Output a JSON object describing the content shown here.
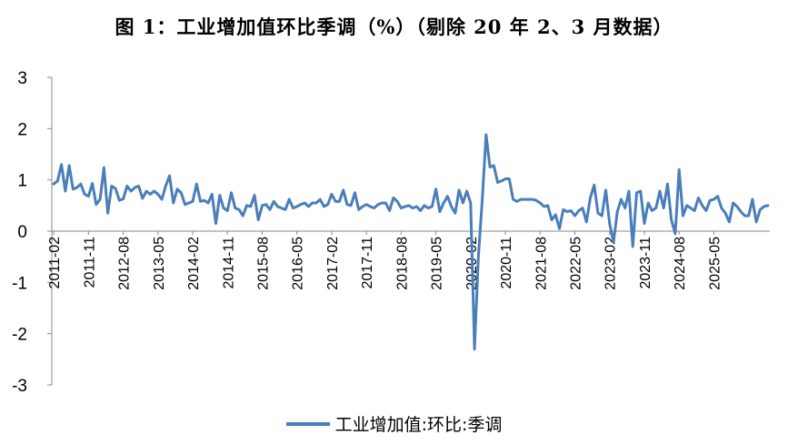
{
  "chart_data": {
    "type": "line",
    "title": "图 1：工业增加值环比季调（%）（剔除 20 年 2、3 月数据）",
    "xlabel": "",
    "ylabel": "",
    "ylim": [
      -3,
      3
    ],
    "yticks": [
      3,
      2,
      1,
      0,
      -1,
      -2,
      -3
    ],
    "x_tick_labels": [
      "2011-02",
      "2011-11",
      "2012-08",
      "2013-05",
      "2014-02",
      "2014-11",
      "2015-08",
      "2016-05",
      "2017-02",
      "2017-11",
      "2018-08",
      "2019-05",
      "2020-02",
      "2020-11",
      "2021-08",
      "2022-05",
      "2023-02",
      "2023-11",
      "2024-08",
      "2025-05"
    ],
    "x_start": "2011-02",
    "legend_position": "bottom",
    "series": [
      {
        "name": "工业增加值:环比:季调",
        "color": "#4a7ebb",
        "values": [
          0.92,
          0.98,
          1.3,
          0.78,
          1.28,
          0.82,
          0.85,
          0.92,
          0.72,
          0.68,
          0.93,
          0.52,
          0.62,
          1.24,
          0.35,
          0.88,
          0.83,
          0.6,
          0.63,
          0.88,
          0.78,
          0.85,
          0.88,
          0.64,
          0.78,
          0.72,
          0.78,
          0.72,
          0.62,
          0.88,
          1.08,
          0.55,
          0.82,
          0.75,
          0.52,
          0.55,
          0.58,
          0.92,
          0.58,
          0.6,
          0.55,
          0.72,
          0.15,
          0.7,
          0.45,
          0.4,
          0.75,
          0.45,
          0.42,
          0.3,
          0.5,
          0.48,
          0.7,
          0.22,
          0.5,
          0.52,
          0.42,
          0.58,
          0.48,
          0.45,
          0.42,
          0.62,
          0.45,
          0.48,
          0.52,
          0.55,
          0.48,
          0.55,
          0.55,
          0.62,
          0.48,
          0.52,
          0.72,
          0.58,
          0.58,
          0.8,
          0.52,
          0.5,
          0.75,
          0.42,
          0.48,
          0.52,
          0.48,
          0.45,
          0.52,
          0.55,
          0.55,
          0.4,
          0.65,
          0.58,
          0.45,
          0.48,
          0.5,
          0.45,
          0.48,
          0.4,
          0.5,
          0.45,
          0.48,
          0.82,
          0.38,
          0.55,
          0.68,
          0.48,
          0.35,
          0.8,
          0.55,
          0.78,
          0.55,
          -2.3,
          -0.5,
          0.6,
          1.88,
          1.25,
          1.28,
          0.95,
          0.98,
          1.02,
          1.02,
          0.62,
          0.58,
          0.62,
          0.62,
          0.62,
          0.62,
          0.6,
          0.55,
          0.48,
          0.5,
          0.22,
          0.32,
          0.05,
          0.42,
          0.38,
          0.4,
          0.3,
          0.4,
          0.45,
          0.18,
          0.65,
          0.9,
          0.35,
          0.3,
          0.8,
          0.15,
          -0.22,
          0.38,
          0.62,
          0.45,
          0.78,
          -0.3,
          0.75,
          0.78,
          0.15,
          0.55,
          0.4,
          0.45,
          0.78,
          0.45,
          0.92,
          0.22,
          -0.05,
          1.2,
          0.3,
          0.5,
          0.45,
          0.4,
          0.65,
          0.5,
          0.4,
          0.6,
          0.62,
          0.68,
          0.45,
          0.35,
          0.18,
          0.55,
          0.48,
          0.38,
          0.3,
          0.3,
          0.62,
          0.18,
          0.42,
          0.48,
          0.5
        ]
      }
    ]
  }
}
